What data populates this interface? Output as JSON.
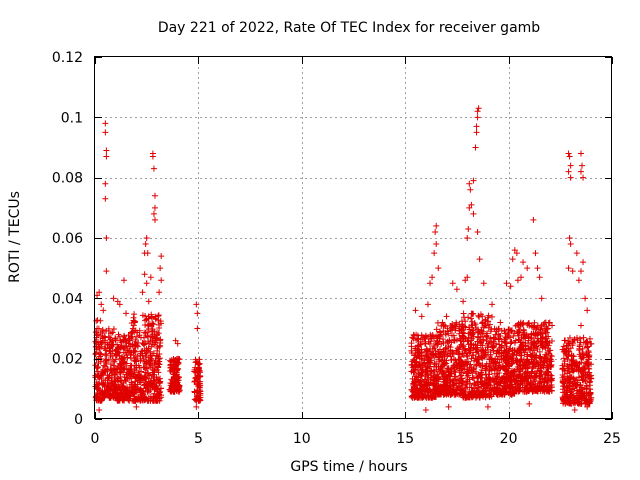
{
  "chart_data": {
    "type": "scatter",
    "title": "Day 221 of 2022, Rate Of TEC Index for receiver gamb",
    "xlabel": "GPS time / hours",
    "ylabel": "ROTI / TECUs",
    "xlim": [
      0,
      25
    ],
    "ylim": [
      0,
      0.12
    ],
    "xticks": [
      "0",
      "5",
      "10",
      "15",
      "20",
      "25"
    ],
    "yticks": [
      "0",
      "0.02",
      "0.04",
      "0.06",
      "0.08",
      "0.1",
      "0.12"
    ],
    "grid": true,
    "marker": "+",
    "color": "#e00000",
    "density": [
      [
        0.0,
        0.35,
        0.006,
        0.033
      ],
      [
        0.35,
        1.0,
        0.007,
        0.03
      ],
      [
        1.0,
        1.7,
        0.006,
        0.028
      ],
      [
        1.7,
        3.2,
        0.006,
        0.035
      ],
      [
        3.6,
        4.1,
        0.009,
        0.02
      ],
      [
        4.8,
        5.1,
        0.006,
        0.02
      ],
      [
        15.3,
        16.5,
        0.007,
        0.028
      ],
      [
        16.5,
        17.7,
        0.008,
        0.032
      ],
      [
        17.7,
        19.2,
        0.007,
        0.035
      ],
      [
        19.2,
        20.3,
        0.008,
        0.03
      ],
      [
        20.3,
        22.1,
        0.009,
        0.032
      ],
      [
        22.6,
        24.0,
        0.005,
        0.027
      ]
    ],
    "points": [
      [
        0.5,
        0.098
      ],
      [
        0.5,
        0.095
      ],
      [
        0.55,
        0.089
      ],
      [
        0.55,
        0.087
      ],
      [
        0.5,
        0.078
      ],
      [
        0.5,
        0.073
      ],
      [
        0.55,
        0.06
      ],
      [
        0.55,
        0.049
      ],
      [
        0.1,
        0.041
      ],
      [
        0.2,
        0.042
      ],
      [
        0.3,
        0.038
      ],
      [
        0.4,
        0.036
      ],
      [
        0.1,
        0.03
      ],
      [
        0.9,
        0.04
      ],
      [
        1.1,
        0.039
      ],
      [
        1.2,
        0.038
      ],
      [
        1.4,
        0.046
      ],
      [
        1.5,
        0.035
      ],
      [
        2.3,
        0.042
      ],
      [
        2.4,
        0.048
      ],
      [
        2.4,
        0.055
      ],
      [
        2.45,
        0.058
      ],
      [
        2.5,
        0.06
      ],
      [
        2.55,
        0.055
      ],
      [
        2.5,
        0.045
      ],
      [
        2.8,
        0.088
      ],
      [
        2.8,
        0.087
      ],
      [
        2.85,
        0.083
      ],
      [
        2.9,
        0.074
      ],
      [
        2.9,
        0.07
      ],
      [
        2.85,
        0.068
      ],
      [
        2.9,
        0.066
      ],
      [
        3.2,
        0.054
      ],
      [
        3.15,
        0.05
      ],
      [
        3.2,
        0.046
      ],
      [
        3.1,
        0.042
      ],
      [
        2.7,
        0.047
      ],
      [
        2.6,
        0.039
      ],
      [
        4.9,
        0.038
      ],
      [
        4.95,
        0.035
      ],
      [
        3.9,
        0.026
      ],
      [
        4.0,
        0.025
      ],
      [
        4.95,
        0.03
      ],
      [
        4.9,
        0.004
      ],
      [
        5.0,
        0.006
      ],
      [
        15.5,
        0.036
      ],
      [
        15.8,
        0.034
      ],
      [
        16.1,
        0.038
      ],
      [
        16.2,
        0.045
      ],
      [
        16.3,
        0.047
      ],
      [
        16.4,
        0.055
      ],
      [
        16.5,
        0.064
      ],
      [
        16.45,
        0.062
      ],
      [
        16.5,
        0.058
      ],
      [
        16.6,
        0.05
      ],
      [
        17.0,
        0.034
      ],
      [
        16.8,
        0.032
      ],
      [
        17.3,
        0.045
      ],
      [
        17.5,
        0.043
      ],
      [
        17.8,
        0.039
      ],
      [
        17.9,
        0.046
      ],
      [
        18.0,
        0.047
      ],
      [
        18.0,
        0.06
      ],
      [
        18.05,
        0.063
      ],
      [
        18.1,
        0.07
      ],
      [
        18.2,
        0.071
      ],
      [
        18.15,
        0.076
      ],
      [
        18.1,
        0.078
      ],
      [
        18.3,
        0.079
      ],
      [
        18.4,
        0.09
      ],
      [
        18.45,
        0.097
      ],
      [
        18.5,
        0.1
      ],
      [
        18.5,
        0.102
      ],
      [
        18.55,
        0.103
      ],
      [
        18.45,
        0.095
      ],
      [
        18.3,
        0.068
      ],
      [
        18.5,
        0.062
      ],
      [
        18.6,
        0.053
      ],
      [
        18.8,
        0.045
      ],
      [
        19.2,
        0.038
      ],
      [
        19.6,
        0.032
      ],
      [
        19.9,
        0.045
      ],
      [
        20.1,
        0.044
      ],
      [
        20.2,
        0.053
      ],
      [
        20.3,
        0.056
      ],
      [
        20.4,
        0.055
      ],
      [
        20.45,
        0.046
      ],
      [
        20.6,
        0.047
      ],
      [
        20.7,
        0.052
      ],
      [
        20.9,
        0.05
      ],
      [
        21.2,
        0.066
      ],
      [
        21.3,
        0.055
      ],
      [
        21.4,
        0.05
      ],
      [
        21.5,
        0.047
      ],
      [
        21.6,
        0.04
      ],
      [
        21.8,
        0.032
      ],
      [
        21.9,
        0.03
      ],
      [
        22.1,
        0.031
      ],
      [
        22.9,
        0.088
      ],
      [
        22.95,
        0.087
      ],
      [
        23.0,
        0.084
      ],
      [
        22.9,
        0.082
      ],
      [
        23.0,
        0.08
      ],
      [
        22.95,
        0.06
      ],
      [
        23.0,
        0.058
      ],
      [
        22.9,
        0.05
      ],
      [
        23.1,
        0.049
      ],
      [
        23.5,
        0.088
      ],
      [
        23.55,
        0.084
      ],
      [
        23.5,
        0.082
      ],
      [
        23.6,
        0.08
      ],
      [
        23.4,
        0.046
      ],
      [
        23.5,
        0.049
      ],
      [
        23.3,
        0.055
      ],
      [
        23.6,
        0.052
      ],
      [
        23.7,
        0.04
      ],
      [
        23.8,
        0.036
      ],
      [
        23.5,
        0.031
      ],
      [
        16.0,
        0.003
      ],
      [
        17.1,
        0.004
      ],
      [
        19.0,
        0.004
      ],
      [
        21.0,
        0.005
      ],
      [
        23.2,
        0.003
      ],
      [
        23.8,
        0.004
      ],
      [
        2.0,
        0.004
      ],
      [
        0.2,
        0.003
      ]
    ]
  }
}
